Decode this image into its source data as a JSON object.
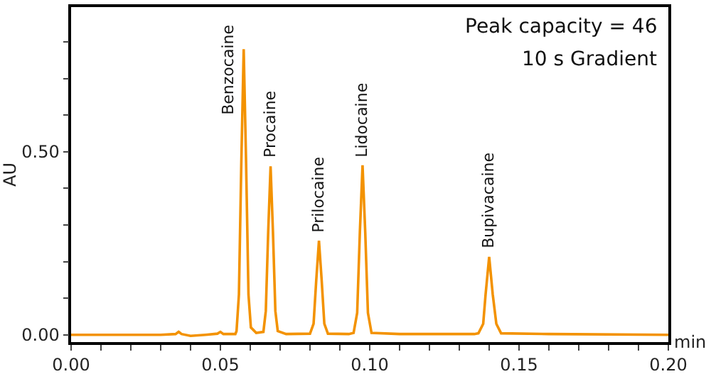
{
  "chart_data": {
    "type": "line",
    "xlabel": "min",
    "ylabel": "AU",
    "x": [
      0,
      0.03,
      0.035,
      0.036,
      0.037,
      0.04,
      0.045,
      0.049,
      0.05,
      0.051,
      0.055,
      0.0554,
      0.0562,
      0.057,
      0.0578,
      0.0586,
      0.0594,
      0.0602,
      0.062,
      0.0644,
      0.0652,
      0.066,
      0.0668,
      0.0676,
      0.0684,
      0.0692,
      0.072,
      0.08,
      0.0812,
      0.0821,
      0.083,
      0.0839,
      0.0848,
      0.086,
      0.093,
      0.0946,
      0.0958,
      0.0967,
      0.0976,
      0.0985,
      0.0994,
      0.1006,
      0.11,
      0.135,
      0.1364,
      0.138,
      0.1388,
      0.14,
      0.1412,
      0.1424,
      0.144,
      0.16,
      0.2
    ],
    "series": [
      {
        "color": "#f39200",
        "values": [
          0,
          0,
          0.002,
          0.008,
          0.002,
          -0.003,
          0,
          0.003,
          0.008,
          0.002,
          0.002,
          0.01,
          0.11,
          0.47,
          0.78,
          0.47,
          0.11,
          0.02,
          0.005,
          0.008,
          0.065,
          0.28,
          0.46,
          0.28,
          0.065,
          0.01,
          0.002,
          0.003,
          0.03,
          0.15,
          0.257,
          0.15,
          0.03,
          0.003,
          0.002,
          0.005,
          0.06,
          0.28,
          0.463,
          0.28,
          0.06,
          0.005,
          0.002,
          0.002,
          0.004,
          0.03,
          0.11,
          0.213,
          0.11,
          0.03,
          0.004,
          0.002,
          0
        ]
      }
    ],
    "xlim": [
      0,
      0.2
    ],
    "xticks": [
      {
        "value": 0,
        "label": "0.00"
      },
      {
        "value": 0.01,
        "label": null
      },
      {
        "value": 0.02,
        "label": null
      },
      {
        "value": 0.03,
        "label": null
      },
      {
        "value": 0.04,
        "label": null
      },
      {
        "value": 0.05,
        "label": "0.05"
      },
      {
        "value": 0.06,
        "label": null
      },
      {
        "value": 0.07,
        "label": null
      },
      {
        "value": 0.08,
        "label": null
      },
      {
        "value": 0.09,
        "label": null
      },
      {
        "value": 0.1,
        "label": "0.10"
      },
      {
        "value": 0.11,
        "label": null
      },
      {
        "value": 0.12,
        "label": null
      },
      {
        "value": 0.13,
        "label": null
      },
      {
        "value": 0.14,
        "label": null
      },
      {
        "value": 0.15,
        "label": "0.15"
      },
      {
        "value": 0.16,
        "label": null
      },
      {
        "value": 0.17,
        "label": null
      },
      {
        "value": 0.18,
        "label": null
      },
      {
        "value": 0.19,
        "label": null
      },
      {
        "value": 0.2,
        "label": "0.20"
      }
    ],
    "ylim": [
      -0.02,
      0.895
    ],
    "yticks": [
      {
        "value": 0,
        "label": "0.00"
      },
      {
        "value": 0.1,
        "label": null
      },
      {
        "value": 0.2,
        "label": null
      },
      {
        "value": 0.3,
        "label": null
      },
      {
        "value": 0.4,
        "label": null
      },
      {
        "value": 0.5,
        "label": "0.50"
      },
      {
        "value": 0.6,
        "label": null
      },
      {
        "value": 0.7,
        "label": null
      },
      {
        "value": 0.8,
        "label": null
      }
    ],
    "grid": false,
    "marker": "none",
    "line_style": "solid",
    "annotations": [
      {
        "text": "Benzocaine",
        "x": 0.0578,
        "y": 0.78
      },
      {
        "text": "Procaine",
        "x": 0.0668,
        "y": 0.46
      },
      {
        "text": "Prilocaine",
        "x": 0.083,
        "y": 0.257
      },
      {
        "text": "Lidocaine",
        "x": 0.0976,
        "y": 0.463
      },
      {
        "text": "Bupivacaine",
        "x": 0.14,
        "y": 0.213
      },
      "Peak capacity = 46",
      "10 s Gradient"
    ]
  }
}
